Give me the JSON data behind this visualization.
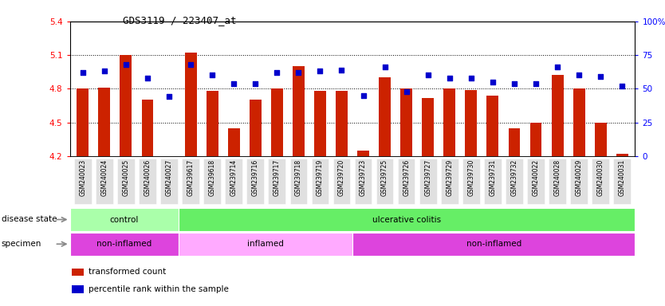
{
  "title": "GDS3119 / 223407_at",
  "samples": [
    "GSM240023",
    "GSM240024",
    "GSM240025",
    "GSM240026",
    "GSM240027",
    "GSM239617",
    "GSM239618",
    "GSM239714",
    "GSM239716",
    "GSM239717",
    "GSM239718",
    "GSM239719",
    "GSM239720",
    "GSM239723",
    "GSM239725",
    "GSM239726",
    "GSM239727",
    "GSM239729",
    "GSM239730",
    "GSM239731",
    "GSM239732",
    "GSM240022",
    "GSM240028",
    "GSM240029",
    "GSM240030",
    "GSM240031"
  ],
  "bar_values": [
    4.8,
    4.81,
    5.1,
    4.7,
    4.2,
    5.12,
    4.78,
    4.45,
    4.7,
    4.8,
    5.0,
    4.78,
    4.78,
    4.25,
    4.9,
    4.8,
    4.72,
    4.8,
    4.79,
    4.74,
    4.45,
    4.5,
    4.92,
    4.8,
    4.5,
    4.22
  ],
  "dot_values": [
    62,
    63,
    68,
    58,
    44,
    68,
    60,
    54,
    54,
    62,
    62,
    63,
    64,
    45,
    66,
    48,
    60,
    58,
    58,
    55,
    54,
    54,
    66,
    60,
    59,
    52
  ],
  "ylim_left": [
    4.2,
    5.4
  ],
  "yticks_left": [
    4.2,
    4.5,
    4.8,
    5.1,
    5.4
  ],
  "yticks_right_labels": [
    "0",
    "25",
    "50",
    "75",
    "100%"
  ],
  "bar_color": "#cc2200",
  "dot_color": "#0000cc",
  "gridline_color": "#000000",
  "disease_state_labels": [
    {
      "label": "control",
      "start": 0,
      "end": 5,
      "color": "#aaffaa"
    },
    {
      "label": "ulcerative colitis",
      "start": 5,
      "end": 26,
      "color": "#66ee66"
    }
  ],
  "specimen_labels": [
    {
      "label": "non-inflamed",
      "start": 0,
      "end": 5,
      "color": "#dd44dd"
    },
    {
      "label": "inflamed",
      "start": 5,
      "end": 13,
      "color": "#ffaaff"
    },
    {
      "label": "non-inflamed",
      "start": 13,
      "end": 26,
      "color": "#dd44dd"
    }
  ],
  "legend_items": [
    {
      "color": "#cc2200",
      "label": "transformed count"
    },
    {
      "color": "#0000cc",
      "label": "percentile rank within the sample"
    }
  ],
  "left_labels": [
    "disease state",
    "specimen"
  ],
  "arrow_color": "#888888"
}
